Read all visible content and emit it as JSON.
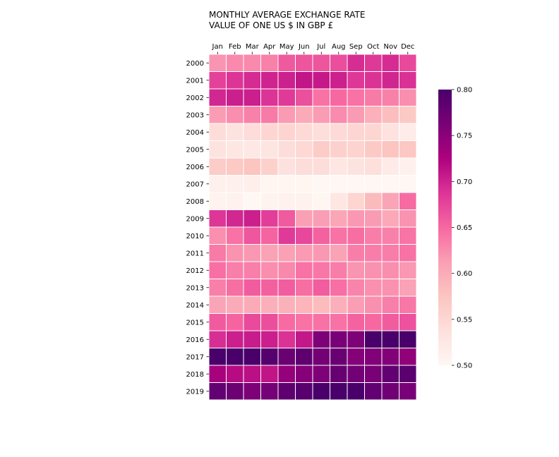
{
  "chart_data": {
    "type": "heatmap",
    "title": "MONTHLY AVERAGE EXCHANGE RATE",
    "subtitle": "VALUE OF ONE US $ IN GBP £",
    "columns": [
      "Jan",
      "Feb",
      "Mar",
      "Apr",
      "May",
      "Jun",
      "Jul",
      "Aug",
      "Sep",
      "Oct",
      "Nov",
      "Dec"
    ],
    "rows": [
      "2000",
      "2001",
      "2002",
      "2003",
      "2004",
      "2005",
      "2006",
      "2007",
      "2008",
      "2009",
      "2010",
      "2011",
      "2012",
      "2013",
      "2014",
      "2015",
      "2016",
      "2017",
      "2018",
      "2019"
    ],
    "values": [
      [
        0.619,
        0.627,
        0.627,
        0.633,
        0.661,
        0.664,
        0.664,
        0.669,
        0.693,
        0.684,
        0.694,
        0.672
      ],
      [
        0.678,
        0.687,
        0.694,
        0.699,
        0.702,
        0.71,
        0.707,
        0.702,
        0.685,
        0.689,
        0.698,
        0.69
      ],
      [
        0.697,
        0.703,
        0.703,
        0.688,
        0.683,
        0.667,
        0.643,
        0.65,
        0.643,
        0.638,
        0.633,
        0.624
      ],
      [
        0.614,
        0.624,
        0.633,
        0.638,
        0.616,
        0.602,
        0.614,
        0.626,
        0.615,
        0.596,
        0.583,
        0.568
      ],
      [
        0.542,
        0.533,
        0.543,
        0.552,
        0.554,
        0.546,
        0.54,
        0.546,
        0.553,
        0.552,
        0.534,
        0.518
      ],
      [
        0.532,
        0.527,
        0.524,
        0.53,
        0.542,
        0.548,
        0.565,
        0.558,
        0.555,
        0.568,
        0.575,
        0.571
      ],
      [
        0.565,
        0.57,
        0.575,
        0.559,
        0.536,
        0.542,
        0.542,
        0.527,
        0.532,
        0.539,
        0.519,
        0.51
      ],
      [
        0.51,
        0.512,
        0.513,
        0.503,
        0.504,
        0.504,
        0.492,
        0.496,
        0.496,
        0.49,
        0.485,
        0.495
      ],
      [
        0.507,
        0.508,
        0.5,
        0.506,
        0.508,
        0.508,
        0.502,
        0.528,
        0.553,
        0.585,
        0.607,
        0.648
      ],
      [
        0.686,
        0.697,
        0.703,
        0.68,
        0.66,
        0.612,
        0.613,
        0.606,
        0.617,
        0.615,
        0.603,
        0.621
      ],
      [
        0.623,
        0.643,
        0.663,
        0.653,
        0.683,
        0.673,
        0.655,
        0.643,
        0.646,
        0.635,
        0.633,
        0.642
      ],
      [
        0.638,
        0.621,
        0.618,
        0.61,
        0.611,
        0.616,
        0.617,
        0.61,
        0.635,
        0.635,
        0.636,
        0.643
      ],
      [
        0.645,
        0.634,
        0.634,
        0.624,
        0.628,
        0.643,
        0.64,
        0.635,
        0.62,
        0.622,
        0.624,
        0.618
      ],
      [
        0.634,
        0.646,
        0.659,
        0.656,
        0.658,
        0.646,
        0.658,
        0.645,
        0.631,
        0.623,
        0.622,
        0.61
      ],
      [
        0.607,
        0.601,
        0.601,
        0.597,
        0.595,
        0.591,
        0.584,
        0.597,
        0.613,
        0.623,
        0.634,
        0.64
      ],
      [
        0.66,
        0.653,
        0.671,
        0.668,
        0.648,
        0.643,
        0.643,
        0.643,
        0.654,
        0.65,
        0.659,
        0.666
      ],
      [
        0.692,
        0.703,
        0.705,
        0.703,
        0.689,
        0.708,
        0.76,
        0.763,
        0.76,
        0.812,
        0.8,
        0.805
      ],
      [
        0.81,
        0.803,
        0.809,
        0.79,
        0.775,
        0.783,
        0.768,
        0.775,
        0.755,
        0.758,
        0.756,
        0.746
      ],
      [
        0.73,
        0.718,
        0.715,
        0.711,
        0.743,
        0.754,
        0.759,
        0.777,
        0.768,
        0.764,
        0.781,
        0.787
      ],
      [
        0.781,
        0.773,
        0.76,
        0.766,
        0.783,
        0.789,
        0.806,
        0.806,
        0.809,
        0.781,
        0.771,
        0.763
      ]
    ],
    "colorbar": {
      "min": 0.5,
      "max": 0.8,
      "ticks": [
        "0.50",
        "0.55",
        "0.60",
        "0.65",
        "0.70",
        "0.75",
        "0.80"
      ]
    },
    "colormap": [
      "#fff7f3",
      "#fde0dd",
      "#fcc5c0",
      "#fa9fb5",
      "#f768a1",
      "#dd3497",
      "#ae017e",
      "#7a0177",
      "#49006a"
    ],
    "grid": true,
    "legend": "right"
  }
}
